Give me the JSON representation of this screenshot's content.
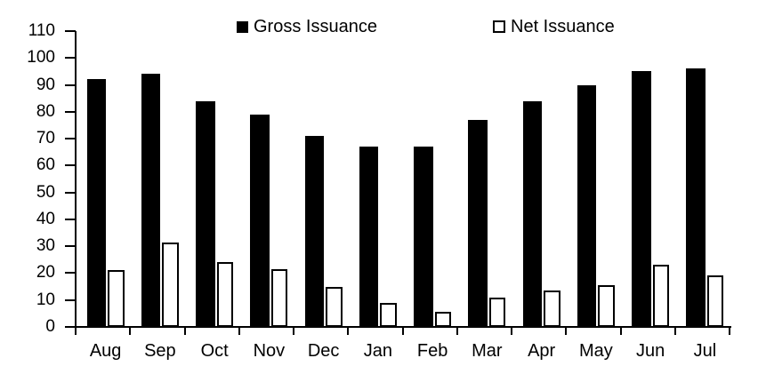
{
  "chart_data": {
    "type": "bar",
    "categories": [
      "Aug",
      "Sep",
      "Oct",
      "Nov",
      "Dec",
      "Jan",
      "Feb",
      "Mar",
      "Apr",
      "May",
      "Jun",
      "Jul"
    ],
    "series": [
      {
        "name": "Gross Issuance",
        "style": "filled-black",
        "values": [
          92,
          94,
          84,
          79,
          71,
          67,
          67,
          77,
          84,
          90,
          95,
          96
        ]
      },
      {
        "name": "Net Issuance",
        "style": "white-outlined",
        "values": [
          21,
          31.5,
          24,
          21.5,
          15,
          9,
          5.5,
          11,
          13.5,
          15.5,
          23,
          19
        ]
      }
    ],
    "title": "",
    "xlabel": "",
    "ylabel": "",
    "ylim": [
      0,
      110
    ],
    "yticks": [
      0,
      10,
      20,
      30,
      40,
      50,
      60,
      70,
      80,
      90,
      100,
      110
    ],
    "grid": false,
    "legend_position": "top"
  },
  "colors": {
    "foreground": "#000000",
    "background": "#ffffff",
    "gross_fill": "#000000",
    "net_fill": "#ffffff",
    "net_border": "#000000"
  }
}
